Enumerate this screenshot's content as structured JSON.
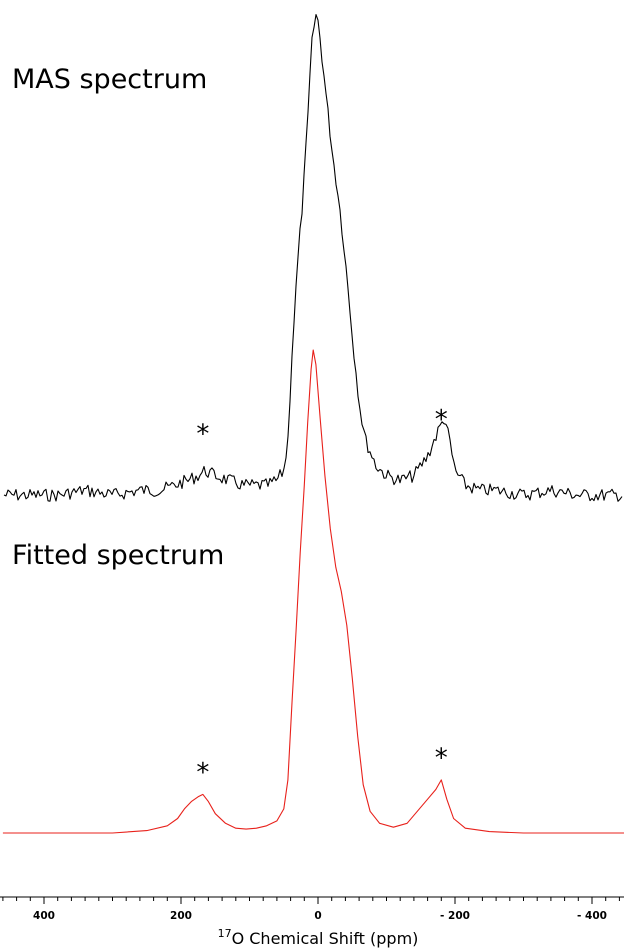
{
  "chart_data": [
    {
      "type": "line",
      "title": "MAS spectrum",
      "color": "#000000",
      "xlabel": "17O Chemical Shift (ppm)",
      "xlim": [
        460,
        -460
      ],
      "x_reversed": true,
      "ylim": [
        0,
        1
      ],
      "annotations": [
        {
          "text": "*",
          "x": 168,
          "y": 0.13
        },
        {
          "text": "*",
          "x": -180,
          "y": 0.16
        }
      ],
      "points": [
        [
          460,
          0.01
        ],
        [
          420,
          0.01
        ],
        [
          380,
          0.01
        ],
        [
          340,
          0.02
        ],
        [
          300,
          0.01
        ],
        [
          260,
          0.02
        ],
        [
          230,
          0.02
        ],
        [
          210,
          0.03
        ],
        [
          190,
          0.04
        ],
        [
          175,
          0.05
        ],
        [
          165,
          0.06
        ],
        [
          150,
          0.05
        ],
        [
          130,
          0.04
        ],
        [
          110,
          0.03
        ],
        [
          90,
          0.03
        ],
        [
          75,
          0.03
        ],
        [
          60,
          0.04
        ],
        [
          50,
          0.06
        ],
        [
          44,
          0.12
        ],
        [
          38,
          0.3
        ],
        [
          30,
          0.48
        ],
        [
          22,
          0.62
        ],
        [
          14,
          0.8
        ],
        [
          10,
          0.92
        ],
        [
          6,
          0.97
        ],
        [
          2,
          1.0
        ],
        [
          -2,
          0.96
        ],
        [
          -8,
          0.88
        ],
        [
          -14,
          0.8
        ],
        [
          -22,
          0.7
        ],
        [
          -30,
          0.62
        ],
        [
          -38,
          0.52
        ],
        [
          -46,
          0.4
        ],
        [
          -54,
          0.28
        ],
        [
          -62,
          0.18
        ],
        [
          -70,
          0.12
        ],
        [
          -85,
          0.07
        ],
        [
          -100,
          0.05
        ],
        [
          -120,
          0.04
        ],
        [
          -140,
          0.05
        ],
        [
          -160,
          0.09
        ],
        [
          -175,
          0.14
        ],
        [
          -185,
          0.17
        ],
        [
          -192,
          0.12
        ],
        [
          -200,
          0.06
        ],
        [
          -215,
          0.03
        ],
        [
          -235,
          0.02
        ],
        [
          -260,
          0.02
        ],
        [
          -300,
          0.01
        ],
        [
          -340,
          0.02
        ],
        [
          -380,
          0.01
        ],
        [
          -420,
          0.01
        ],
        [
          -460,
          0.01
        ]
      ]
    },
    {
      "type": "line",
      "title": "Fitted spectrum",
      "color": "#e8211b",
      "xlim": [
        460,
        -460
      ],
      "x_reversed": true,
      "ylim": [
        0,
        1
      ],
      "annotations": [
        {
          "text": "*",
          "x": 168,
          "y": 0.12
        },
        {
          "text": "*",
          "x": -180,
          "y": 0.15
        }
      ],
      "points": [
        [
          460,
          0.0
        ],
        [
          380,
          0.0
        ],
        [
          300,
          0.0
        ],
        [
          250,
          0.005
        ],
        [
          220,
          0.015
        ],
        [
          205,
          0.03
        ],
        [
          195,
          0.05
        ],
        [
          185,
          0.065
        ],
        [
          175,
          0.075
        ],
        [
          168,
          0.08
        ],
        [
          160,
          0.065
        ],
        [
          150,
          0.04
        ],
        [
          135,
          0.02
        ],
        [
          120,
          0.01
        ],
        [
          105,
          0.008
        ],
        [
          90,
          0.01
        ],
        [
          75,
          0.015
        ],
        [
          60,
          0.025
        ],
        [
          50,
          0.05
        ],
        [
          44,
          0.11
        ],
        [
          38,
          0.27
        ],
        [
          32,
          0.42
        ],
        [
          26,
          0.58
        ],
        [
          20,
          0.72
        ],
        [
          15,
          0.85
        ],
        [
          10,
          0.96
        ],
        [
          7,
          1.0
        ],
        [
          3,
          0.97
        ],
        [
          -3,
          0.86
        ],
        [
          -10,
          0.74
        ],
        [
          -18,
          0.63
        ],
        [
          -26,
          0.55
        ],
        [
          -34,
          0.5
        ],
        [
          -42,
          0.43
        ],
        [
          -50,
          0.32
        ],
        [
          -58,
          0.2
        ],
        [
          -66,
          0.1
        ],
        [
          -76,
          0.045
        ],
        [
          -90,
          0.02
        ],
        [
          -110,
          0.012
        ],
        [
          -130,
          0.02
        ],
        [
          -145,
          0.045
        ],
        [
          -160,
          0.07
        ],
        [
          -172,
          0.09
        ],
        [
          -180,
          0.11
        ],
        [
          -188,
          0.07
        ],
        [
          -198,
          0.03
        ],
        [
          -215,
          0.01
        ],
        [
          -250,
          0.003
        ],
        [
          -300,
          0.0
        ],
        [
          -380,
          0.0
        ],
        [
          -460,
          0.0
        ]
      ]
    }
  ],
  "axis": {
    "ticks": [
      400,
      200,
      0,
      -200,
      -400
    ],
    "tick_labels": [
      "400",
      "200",
      "0",
      "- 200",
      "- 400"
    ],
    "minor_step": 20,
    "label_prefix_sup": "17",
    "label_text": "O Chemical Shift (ppm)"
  }
}
